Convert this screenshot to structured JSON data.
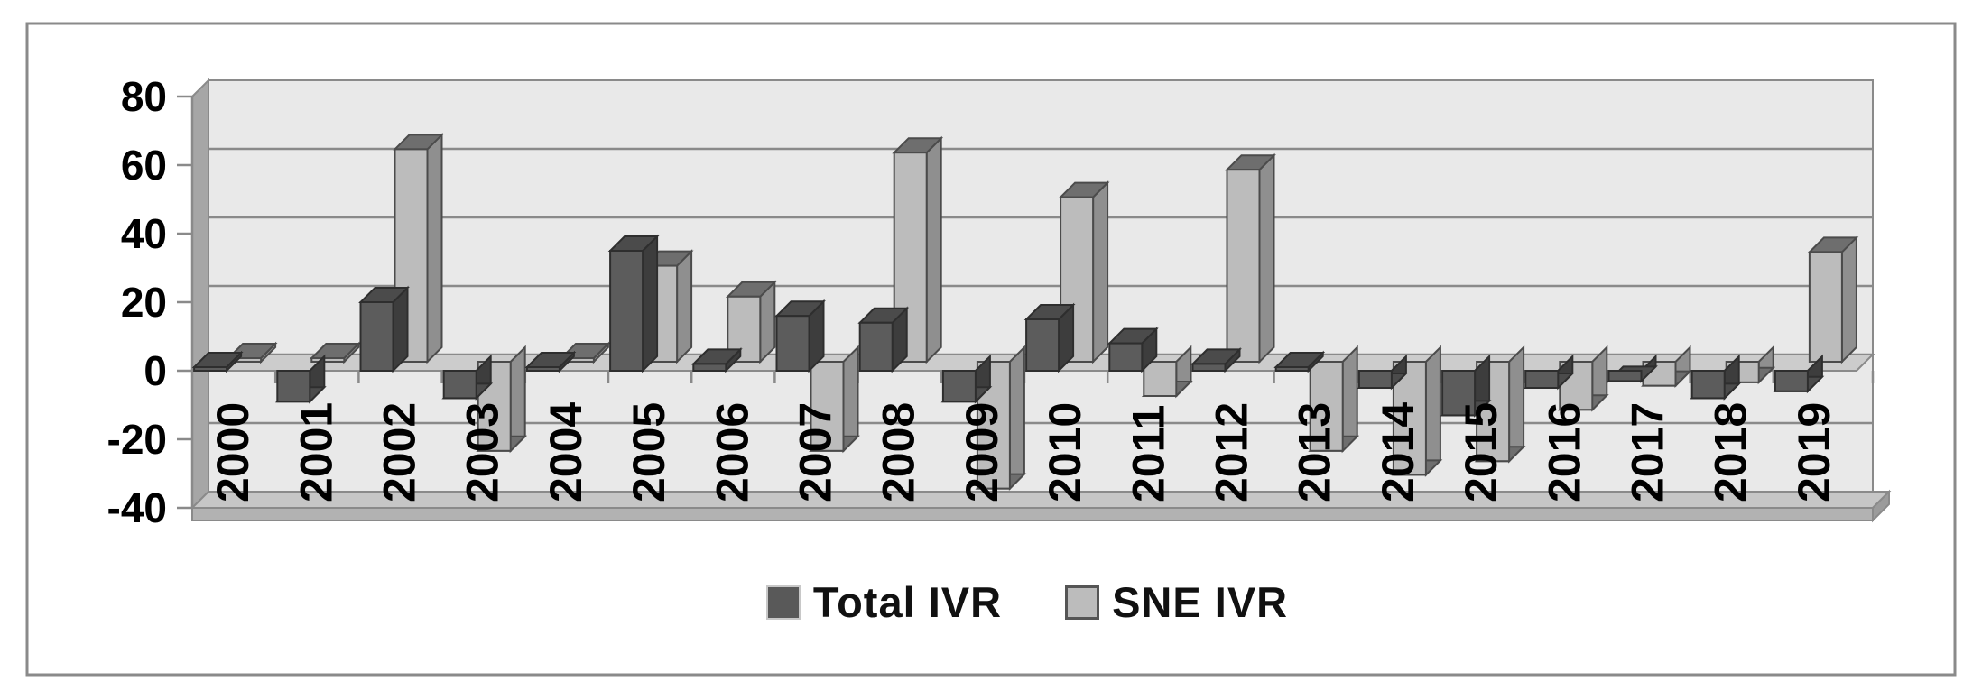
{
  "chart_data": {
    "type": "bar",
    "style": "3d-clustered-column",
    "title": "",
    "xlabel": "",
    "ylabel": "",
    "categories": [
      "2000",
      "2001",
      "2002",
      "2003",
      "2004",
      "2005",
      "2006",
      "2007",
      "2008",
      "2009",
      "2010",
      "2011",
      "2012",
      "2013",
      "2014",
      "2015",
      "2016",
      "2017",
      "2018",
      "2019"
    ],
    "series": [
      {
        "name": "Total IVR",
        "color": "#5c5c5c",
        "values": [
          1,
          -9,
          20,
          -8,
          1,
          35,
          2,
          16,
          14,
          -9,
          15,
          8,
          2,
          1,
          -5,
          -13,
          -5,
          -3,
          -8,
          -6
        ]
      },
      {
        "name": "SNE IVR",
        "color": "#bcbcbc",
        "values": [
          1,
          1,
          62,
          -26,
          1,
          28,
          19,
          -26,
          61,
          -37,
          48,
          -10,
          56,
          -26,
          -33,
          -29,
          -14,
          -7,
          -6,
          32
        ]
      }
    ],
    "ylim": [
      -40,
      80
    ],
    "ytick_interval": 20,
    "yticks": [
      "80",
      "60",
      "40",
      "20",
      "0",
      "-20",
      "-40"
    ],
    "grid": true,
    "legend_position": "bottom"
  },
  "legend": {
    "items": [
      {
        "label": "Total IVR",
        "swatch_color": "#595959"
      },
      {
        "label": "SNE IVR",
        "swatch_color": "#bcbcbc"
      }
    ]
  },
  "colors": {
    "wall_fill": "#e9e9e9",
    "wall_side": "#a6a6a6",
    "floor_band": "#cccccc",
    "plinth_top": "#c6c6c6",
    "plinth_front": "#b2b2b2",
    "plinth_side": "#9b9b9b",
    "gridline": "#8a8a8a",
    "outer_border": "#8a8a8a",
    "axis_text": "#000000",
    "total_front": "#5c5c5c",
    "total_side": "#3d3d3d",
    "total_top": "#4b4b4b",
    "total_outline": "#2e2e2e",
    "sne_front": "#bcbcbc",
    "sne_side": "#8f8f8f",
    "sne_top": "#6e6e6e",
    "sne_outline": "#4b4b4b"
  }
}
